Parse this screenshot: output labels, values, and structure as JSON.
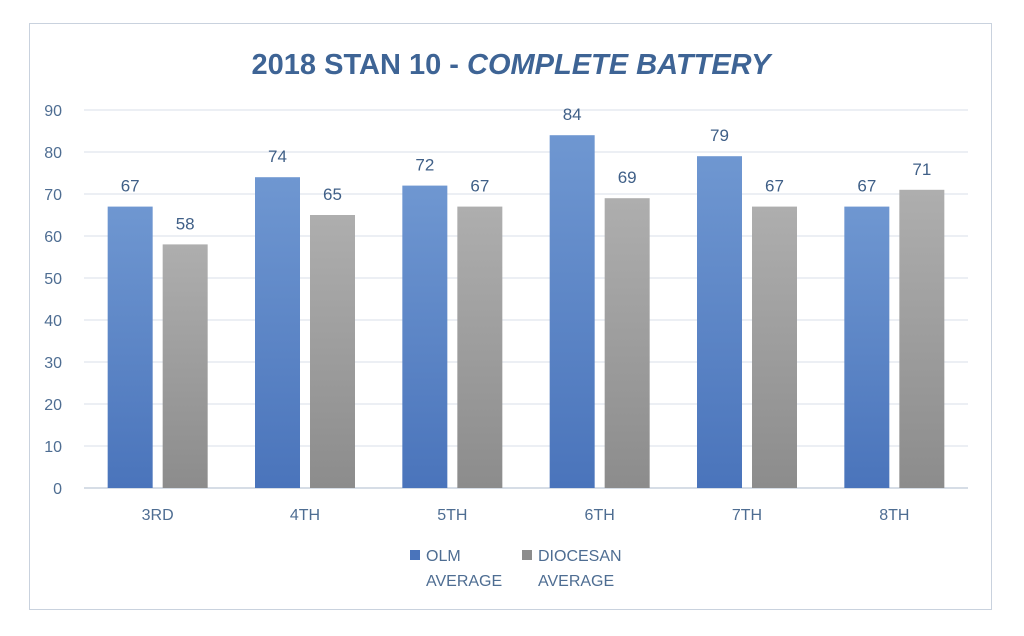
{
  "chart_data": {
    "type": "bar",
    "title": "2018 STAN 10 - ",
    "title_italic": "COMPLETE BATTERY",
    "categories": [
      "3RD",
      "4TH",
      "5TH",
      "6TH",
      "7TH",
      "8TH"
    ],
    "series": [
      {
        "name": "OLM AVERAGE",
        "legend_lines": [
          "OLM",
          "AVERAGE"
        ],
        "values": [
          67,
          74,
          72,
          84,
          79,
          67
        ],
        "color_top": "#6f97d1",
        "color_bottom": "#4a74bb"
      },
      {
        "name": "DIOCESAN AVERAGE",
        "legend_lines": [
          "DIOCESAN",
          "AVERAGE"
        ],
        "values": [
          58,
          65,
          67,
          69,
          67,
          71
        ],
        "color_top": "#aeaeae",
        "color_bottom": "#8c8c8c"
      }
    ],
    "yticks": [
      "0",
      "10",
      "20",
      "30",
      "40",
      "50",
      "60",
      "70",
      "80",
      "90"
    ],
    "ylim": [
      0,
      90
    ],
    "xlabel": "",
    "ylabel": "",
    "grid": true,
    "legend_position": "bottom",
    "colors": {
      "title": "#3e6495",
      "axis_text": "#4e6d92",
      "data_label": "#3f5f87",
      "gridline": "#d9dfe8",
      "baseline": "#c9d2de"
    }
  }
}
